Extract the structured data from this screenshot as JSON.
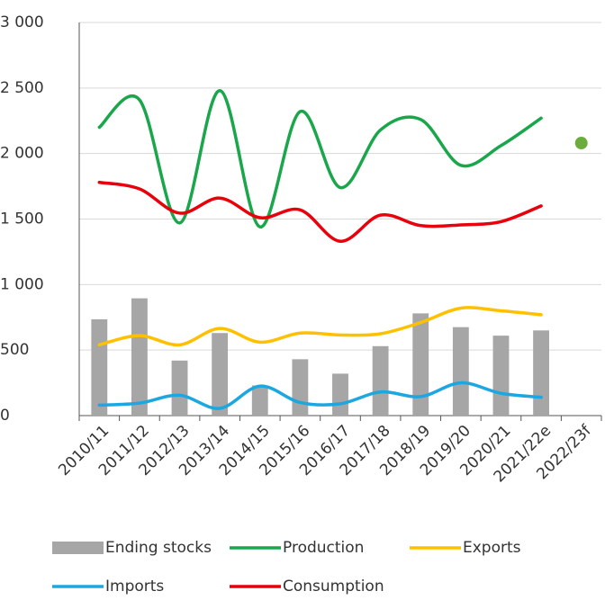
{
  "chart_data": {
    "type": "bar-line",
    "categories": [
      "2010/11",
      "2011/12",
      "2012/13",
      "2013/14",
      "2014/15",
      "2015/16",
      "2016/17",
      "2017/18",
      "2018/19",
      "2019/20",
      "2020/21",
      "2021/22e",
      "2022/23f"
    ],
    "series": [
      {
        "name": "Ending stocks",
        "type": "bar",
        "color": "#a6a6a6",
        "values": [
          735,
          895,
          420,
          630,
          230,
          430,
          320,
          530,
          780,
          675,
          610,
          650,
          null
        ]
      },
      {
        "name": "Production",
        "type": "line",
        "color": "#1aa64a",
        "values": [
          2200,
          2410,
          1470,
          2480,
          1440,
          2320,
          1740,
          2180,
          2260,
          1910,
          2060,
          2270,
          2080
        ]
      },
      {
        "name": "Exports",
        "type": "line",
        "color": "#ffc000",
        "values": [
          540,
          610,
          540,
          665,
          560,
          630,
          615,
          625,
          710,
          820,
          800,
          770,
          null
        ]
      },
      {
        "name": "Imports",
        "type": "line",
        "color": "#1ca7e0",
        "values": [
          80,
          95,
          155,
          55,
          225,
          100,
          90,
          180,
          145,
          250,
          170,
          140,
          null
        ]
      },
      {
        "name": "Consumption",
        "type": "line",
        "color": "#e8000b",
        "values": [
          1780,
          1730,
          1545,
          1660,
          1510,
          1570,
          1330,
          1530,
          1450,
          1455,
          1480,
          1600,
          null
        ]
      }
    ],
    "ylim": [
      0,
      3000
    ],
    "yticks": [
      0,
      500,
      {
        "value": 1000,
        "label": "1 000"
      },
      {
        "value": 1500,
        "label": "1 500"
      },
      {
        "value": 2000,
        "label": "2 000"
      },
      {
        "value": 2500,
        "label": "2 500"
      },
      {
        "value": 3000,
        "label": "3 000"
      }
    ],
    "grid": true,
    "legend": "bottom"
  }
}
